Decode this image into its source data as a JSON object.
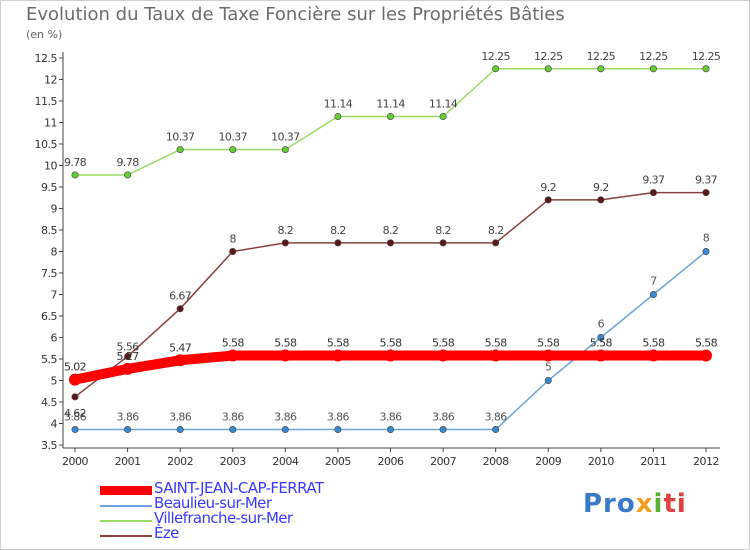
{
  "title": "Evolution du Taux de Taxe Foncière sur les Propriétés Bâties",
  "subtitle": "(en %)",
  "logo": {
    "p": "Pro",
    "x": "x",
    "i": "i",
    "ti": "ti"
  },
  "chart_data": {
    "type": "line",
    "title": "Evolution du Taux de Taxe Foncière sur les Propriétés Bâties",
    "ylabel": "(en %)",
    "xlabel": "",
    "x": [
      "2000",
      "2001",
      "2002",
      "2003",
      "2004",
      "2005",
      "2006",
      "2007",
      "2008",
      "2009",
      "2010",
      "2011",
      "2012"
    ],
    "ylim": [
      3.5,
      12.5
    ],
    "yticks": [
      "3.5",
      "4",
      "4.5",
      "5",
      "5.5",
      "6",
      "6.5",
      "7",
      "7.5",
      "8",
      "8.5",
      "9",
      "9.5",
      "10",
      "10.5",
      "11",
      "11.5",
      "12",
      "12.5"
    ],
    "grid": false,
    "legend_position": "bottom-left",
    "series": [
      {
        "name": "SAINT-JEAN-CAP-FERRAT",
        "color": "#ff0000",
        "point_color": "#ff0000",
        "label_color": "#333333",
        "values": [
          5.02,
          5.27,
          5.47,
          5.58,
          5.58,
          5.58,
          5.58,
          5.58,
          5.58,
          5.58,
          5.58,
          5.58,
          5.58
        ],
        "labels": [
          "5.02",
          "5.27",
          "5.47",
          "5.58",
          "5.58",
          "5.58",
          "5.58",
          "5.58",
          "5.58",
          "5.58",
          "5.58",
          "5.58",
          "5.58"
        ]
      },
      {
        "name": "Beaulieu-sur-Mer",
        "color": "#6aa4d8",
        "point_color": "#3a88d0",
        "label_color": "#555555",
        "values": [
          3.86,
          3.86,
          3.86,
          3.86,
          3.86,
          3.86,
          3.86,
          3.86,
          3.86,
          5,
          6,
          7,
          8
        ],
        "labels": [
          "3.86",
          "3.86",
          "3.86",
          "3.86",
          "3.86",
          "3.86",
          "3.86",
          "3.86",
          "3.86",
          "5",
          "6",
          "7",
          "8"
        ]
      },
      {
        "name": "Villefranche-sur-Mer",
        "color": "#99dd66",
        "point_color": "#66cc33",
        "label_color": "#444444",
        "values": [
          9.78,
          9.78,
          10.37,
          10.37,
          10.37,
          11.14,
          11.14,
          11.14,
          12.25,
          12.25,
          12.25,
          12.25,
          12.25
        ],
        "labels": [
          "9.78",
          "9.78",
          "10.37",
          "10.37",
          "10.37",
          "11.14",
          "11.14",
          "11.14",
          "12.25",
          "12.25",
          "12.25",
          "12.25",
          "12.25"
        ]
      },
      {
        "name": "Èze",
        "color": "#8b4040",
        "point_color": "#5a1a1a",
        "label_color": "#444444",
        "values": [
          4.62,
          5.56,
          6.67,
          8,
          8.2,
          8.2,
          8.2,
          8.2,
          8.2,
          9.2,
          9.2,
          9.37,
          9.37
        ],
        "labels": [
          "4.62",
          "5.56",
          "6.67",
          "8",
          "8.2",
          "8.2",
          "8.2",
          "8.2",
          "8.2",
          "9.2",
          "9.2",
          "9.37",
          "9.37"
        ]
      }
    ]
  }
}
